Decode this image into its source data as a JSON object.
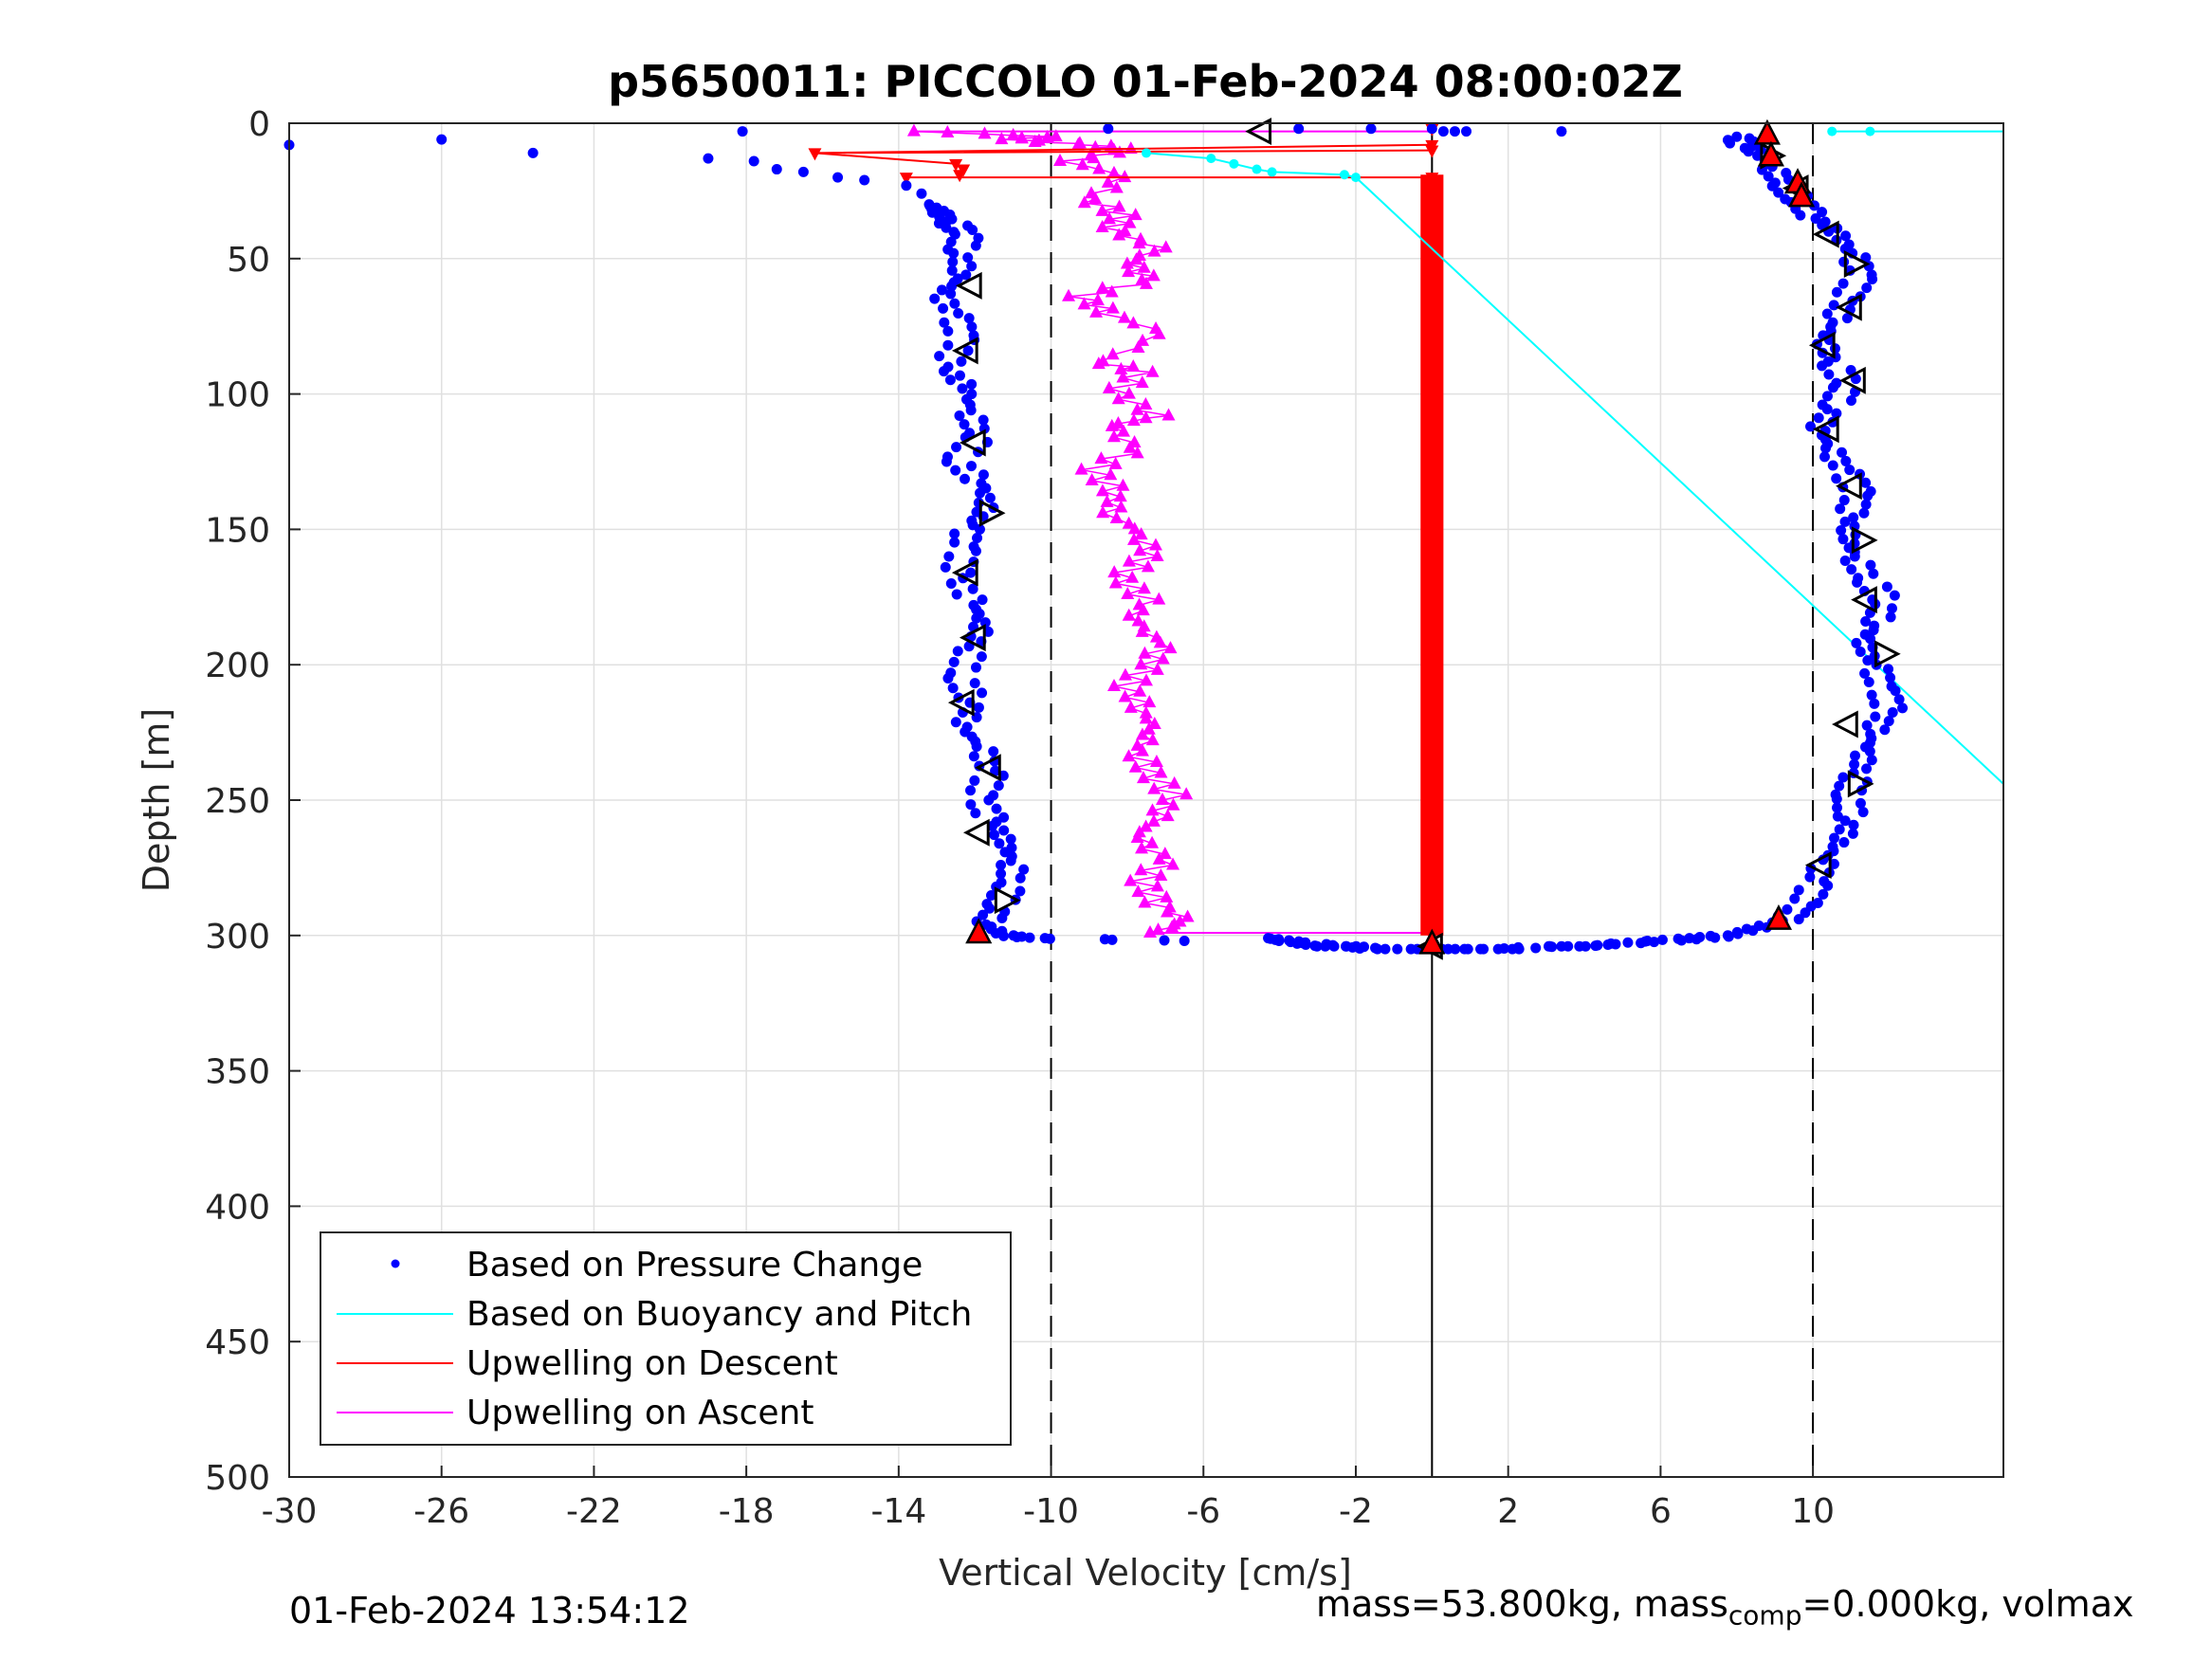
{
  "chart_data": {
    "type": "scatter",
    "title": "p5650011: PICCOLO 01-Feb-2024 08:00:02Z",
    "xlabel": "Vertical Velocity [cm/s]",
    "ylabel": "Depth [m]",
    "xlim": [
      -30,
      15
    ],
    "ylim": [
      0,
      500
    ],
    "y_reversed": true,
    "grid": true,
    "xticks": [
      -30,
      -26,
      -22,
      -18,
      -14,
      -10,
      -6,
      -2,
      2,
      6,
      10
    ],
    "yticks": [
      0,
      50,
      100,
      150,
      200,
      250,
      300,
      350,
      400,
      450,
      500
    ],
    "reference_lines": [
      {
        "x": -10,
        "style": "dashed"
      },
      {
        "x": 0,
        "style": "solid"
      },
      {
        "x": 10,
        "style": "dashed"
      }
    ],
    "legend_position": "bottom-left",
    "colors": {
      "pressure": "#0000ff",
      "buoyancy": "#00ffff",
      "descent": "#ff0000",
      "ascent": "#ff00ff",
      "marker_edge": "#000000",
      "marker_fill": "#ff0000"
    },
    "series": [
      {
        "name": "Based on Pressure Change",
        "descent": [
          [
            -30,
            8
          ],
          [
            -26,
            6
          ],
          [
            -23.6,
            11
          ],
          [
            -19,
            13
          ],
          [
            -18.1,
            3
          ],
          [
            -17.8,
            14
          ],
          [
            -17.2,
            17
          ],
          [
            -16.5,
            18
          ],
          [
            -15.6,
            20
          ],
          [
            -14.9,
            21
          ],
          [
            -13.8,
            23
          ],
          [
            -13.4,
            26
          ],
          [
            -13.2,
            30
          ],
          [
            -12.9,
            33
          ],
          [
            -12.6,
            37
          ],
          [
            -12.2,
            41
          ],
          [
            -12.4,
            48
          ],
          [
            -12.3,
            56
          ],
          [
            -12.9,
            63
          ],
          [
            -12.5,
            72
          ],
          [
            -12.3,
            80
          ],
          [
            -12.8,
            90
          ],
          [
            -12.2,
            98
          ],
          [
            -12.1,
            108
          ],
          [
            -11.9,
            116
          ],
          [
            -12.5,
            125
          ],
          [
            -11.8,
            133
          ],
          [
            -11.7,
            142
          ],
          [
            -12.2,
            150
          ],
          [
            -12.3,
            158
          ],
          [
            -12.5,
            168
          ],
          [
            -12.0,
            178
          ],
          [
            -11.8,
            186
          ],
          [
            -12.1,
            195
          ],
          [
            -12.4,
            205
          ],
          [
            -12.0,
            214
          ],
          [
            -12.3,
            223
          ],
          [
            -11.8,
            232
          ],
          [
            -11.6,
            241
          ],
          [
            -11.9,
            250
          ],
          [
            -11.5,
            258
          ],
          [
            -11.2,
            266
          ],
          [
            -11.0,
            274
          ],
          [
            -11.1,
            282
          ],
          [
            -11.4,
            290
          ],
          [
            -11.7,
            296
          ],
          [
            -11.2,
            300
          ],
          [
            -10.5,
            301
          ],
          [
            -6.5,
            302
          ]
        ],
        "ascent": [
          [
            -4.3,
            301
          ],
          [
            -3.8,
            302
          ],
          [
            -3.2,
            303
          ],
          [
            -2.7,
            304
          ],
          [
            -2.1,
            304
          ],
          [
            -1.5,
            305
          ],
          [
            0.0,
            305
          ],
          [
            1.0,
            305
          ],
          [
            2.0,
            305
          ],
          [
            3.0,
            304
          ],
          [
            4.0,
            304
          ],
          [
            5.0,
            303
          ],
          [
            6.0,
            302
          ],
          [
            7.0,
            301
          ],
          [
            7.8,
            300
          ],
          [
            8.6,
            297
          ],
          [
            9.3,
            294
          ],
          [
            9.8,
            288
          ],
          [
            10.1,
            280
          ],
          [
            10.3,
            272
          ],
          [
            10.8,
            264
          ],
          [
            11.0,
            256
          ],
          [
            10.9,
            248
          ],
          [
            11.2,
            240
          ],
          [
            11.4,
            232
          ],
          [
            11.6,
            224
          ],
          [
            12.0,
            216
          ],
          [
            11.8,
            208
          ],
          [
            11.6,
            200
          ],
          [
            11.3,
            192
          ],
          [
            11.7,
            184
          ],
          [
            11.9,
            176
          ],
          [
            11.4,
            168
          ],
          [
            11.1,
            160
          ],
          [
            10.9,
            152
          ],
          [
            11.0,
            144
          ],
          [
            11.2,
            136
          ],
          [
            10.8,
            128
          ],
          [
            10.4,
            120
          ],
          [
            10.2,
            112
          ],
          [
            10.6,
            104
          ],
          [
            10.9,
            96
          ],
          [
            10.5,
            88
          ],
          [
            10.3,
            80
          ],
          [
            10.6,
            72
          ],
          [
            10.9,
            64
          ],
          [
            11.3,
            56
          ],
          [
            11.0,
            48
          ],
          [
            10.6,
            40
          ],
          [
            10.0,
            34
          ],
          [
            9.6,
            28
          ],
          [
            9.2,
            22
          ],
          [
            8.9,
            16
          ],
          [
            8.6,
            11
          ],
          [
            8.2,
            8
          ],
          [
            8.0,
            5
          ]
        ],
        "surface": [
          [
            -8.5,
            2
          ],
          [
            -3.5,
            2
          ],
          [
            -1.6,
            2
          ],
          [
            0.0,
            2
          ],
          [
            0.3,
            3
          ],
          [
            0.6,
            3
          ],
          [
            0.9,
            3
          ],
          [
            3.4,
            3
          ]
        ]
      },
      {
        "name": "Based on Buoyancy and Pitch",
        "values": [
          [
            10.5,
            3
          ],
          [
            11.5,
            3
          ],
          [
            15,
            3
          ]
        ],
        "descent_path": [
          [
            -7.5,
            11
          ],
          [
            -5.8,
            13
          ],
          [
            -5.2,
            15
          ],
          [
            -4.6,
            17
          ],
          [
            -4.2,
            18
          ],
          [
            -2.3,
            19
          ],
          [
            -2.0,
            20
          ],
          [
            15,
            244
          ]
        ]
      },
      {
        "name": "Upwelling on Descent",
        "values": [
          [
            -16.2,
            11
          ],
          [
            -13.8,
            20
          ],
          [
            -12.5,
            15
          ],
          [
            -12.3,
            17
          ],
          [
            -12.4,
            19
          ],
          [
            0,
            2
          ],
          [
            0,
            8
          ],
          [
            0,
            10
          ],
          [
            0,
            20
          ],
          [
            0,
            50
          ],
          [
            0,
            100
          ],
          [
            0,
            150
          ],
          [
            0,
            200
          ],
          [
            0,
            250
          ],
          [
            0,
            300
          ]
        ]
      },
      {
        "name": "Upwelling on Ascent",
        "profile": [
          [
            -7.4,
            299
          ],
          [
            -6.4,
            295
          ],
          [
            -7.2,
            288
          ],
          [
            -7.6,
            280
          ],
          [
            -7.0,
            272
          ],
          [
            -7.8,
            264
          ],
          [
            -7.2,
            256
          ],
          [
            -6.8,
            248
          ],
          [
            -7.4,
            240
          ],
          [
            -7.7,
            232
          ],
          [
            -7.3,
            224
          ],
          [
            -7.6,
            216
          ],
          [
            -8.0,
            208
          ],
          [
            -7.4,
            200
          ],
          [
            -7.1,
            192
          ],
          [
            -7.9,
            184
          ],
          [
            -7.5,
            176
          ],
          [
            -8.2,
            168
          ],
          [
            -7.4,
            160
          ],
          [
            -7.6,
            152
          ],
          [
            -8.4,
            144
          ],
          [
            -8.3,
            136
          ],
          [
            -8.9,
            128
          ],
          [
            -7.8,
            120
          ],
          [
            -8.5,
            112
          ],
          [
            -7.2,
            108
          ],
          [
            -8.3,
            100
          ],
          [
            -7.6,
            92
          ],
          [
            -8.7,
            88
          ],
          [
            -7.0,
            78
          ],
          [
            -8.5,
            70
          ],
          [
            -9.2,
            64
          ],
          [
            -7.4,
            58
          ],
          [
            -8.0,
            52
          ],
          [
            -7.2,
            46
          ],
          [
            -8.4,
            40
          ],
          [
            -8.1,
            34
          ],
          [
            -9.0,
            28
          ],
          [
            -8.0,
            20
          ],
          [
            -9.5,
            14
          ],
          [
            -8.0,
            10
          ],
          [
            -9.0,
            8
          ],
          [
            -11.2,
            6
          ],
          [
            -10.0,
            5
          ],
          [
            -13.6,
            3
          ]
        ],
        "surface_line": [
          [
            -13.6,
            3
          ],
          [
            0,
            3
          ]
        ]
      }
    ],
    "pitch_markers": {
      "triangle_left": [
        [
          -4.5,
          3
        ],
        [
          -12.1,
          60
        ],
        [
          -12.2,
          84
        ],
        [
          -12.0,
          118
        ],
        [
          -12.2,
          166
        ],
        [
          -12.0,
          190
        ],
        [
          -12.3,
          214
        ],
        [
          -11.6,
          238
        ],
        [
          -11.9,
          262
        ],
        [
          9.6,
          24
        ],
        [
          10.4,
          41
        ],
        [
          11.0,
          68
        ],
        [
          10.3,
          82
        ],
        [
          11.1,
          95
        ],
        [
          10.4,
          113
        ],
        [
          11.0,
          134
        ],
        [
          11.4,
          176
        ],
        [
          10.9,
          222
        ],
        [
          10.2,
          274
        ],
        [
          0,
          304
        ]
      ],
      "triangle_right": [
        [
          -11.6,
          144
        ],
        [
          -11.2,
          287
        ],
        [
          11.1,
          52
        ],
        [
          11.3,
          154
        ],
        [
          11.9,
          196
        ],
        [
          11.2,
          244
        ],
        [
          8.9,
          12
        ]
      ],
      "triangle_up_filled": [
        [
          8.8,
          4
        ],
        [
          8.9,
          12
        ],
        [
          9.6,
          22
        ],
        [
          9.7,
          27
        ],
        [
          9.1,
          294
        ],
        [
          -11.9,
          299
        ],
        [
          0,
          303
        ]
      ]
    }
  },
  "footer": {
    "timestamp": "01-Feb-2024 13:54:12",
    "mass_text": "mass=53.800kg, mass",
    "comp_sub": "comp",
    "mass_comp_text": "=0.000kg, volmax"
  }
}
